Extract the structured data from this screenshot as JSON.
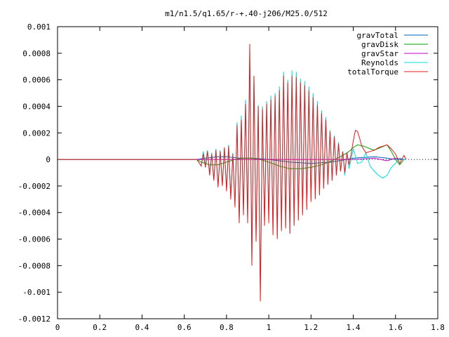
{
  "chart_data": {
    "type": "line",
    "title": "m1/n1.5/q1.65/r-+.40-j206/M25.0/512",
    "xlabel": "",
    "ylabel": "",
    "xlim": [
      0,
      1.8
    ],
    "ylim": [
      -0.0012,
      0.001
    ],
    "x_ticks": [
      "0",
      "0.2",
      "0.4",
      "0.6",
      "0.8",
      "1",
      "1.2",
      "1.4",
      "1.6",
      "1.8"
    ],
    "y_ticks": [
      "0.001",
      "0.0008",
      "0.0006",
      "0.0004",
      "0.0002",
      "0",
      "-0.0002",
      "-0.0004",
      "-0.0006",
      "-0.0008",
      "-0.001",
      "-0.0012"
    ],
    "grid": false,
    "legend_position": "top-right",
    "series": [
      {
        "name": "gravTotal",
        "color": "#0060ad",
        "points": [
          [
            0,
            0
          ],
          [
            0.66,
            0
          ],
          [
            0.7,
            1e-05
          ],
          [
            0.76,
            2e-05
          ],
          [
            0.8,
            2e-05
          ],
          [
            0.86,
            1e-05
          ],
          [
            0.92,
            1e-05
          ],
          [
            1.0,
            0
          ],
          [
            1.05,
            -1e-05
          ],
          [
            1.1,
            -2e-05
          ],
          [
            1.2,
            -3e-05
          ],
          [
            1.3,
            -2e-05
          ],
          [
            1.4,
            1e-05
          ],
          [
            1.5,
            2e-05
          ],
          [
            1.56,
            1e-05
          ],
          [
            1.6,
            0
          ],
          [
            1.64,
            0
          ]
        ]
      },
      {
        "name": "gravDisk",
        "color": "#009e00",
        "points": [
          [
            0,
            0
          ],
          [
            0.66,
            0
          ],
          [
            0.68,
            -2e-05
          ],
          [
            0.72,
            -4e-05
          ],
          [
            0.76,
            -4e-05
          ],
          [
            0.8,
            -2e-05
          ],
          [
            0.84,
            0
          ],
          [
            0.88,
            1e-05
          ],
          [
            0.92,
            1e-05
          ],
          [
            0.96,
            0
          ],
          [
            1.0,
            -2e-05
          ],
          [
            1.05,
            -5e-05
          ],
          [
            1.1,
            -7e-05
          ],
          [
            1.15,
            -7e-05
          ],
          [
            1.2,
            -6e-05
          ],
          [
            1.25,
            -4e-05
          ],
          [
            1.3,
            -1e-05
          ],
          [
            1.35,
            3e-05
          ],
          [
            1.38,
            6e-05
          ],
          [
            1.4,
            9e-05
          ],
          [
            1.42,
            0.00011
          ],
          [
            1.45,
            0.0001
          ],
          [
            1.48,
            8e-05
          ],
          [
            1.5,
            7e-05
          ],
          [
            1.53,
            9e-05
          ],
          [
            1.56,
            0.00011
          ],
          [
            1.58,
            6e-05
          ],
          [
            1.6,
            0
          ],
          [
            1.62,
            -4e-05
          ],
          [
            1.64,
            0
          ],
          [
            1.65,
            0
          ]
        ]
      },
      {
        "name": "gravStar",
        "color": "#c000c0",
        "points": [
          [
            0,
            0
          ],
          [
            0.66,
            0
          ],
          [
            0.8,
            0
          ],
          [
            1.0,
            0
          ],
          [
            1.2,
            0
          ],
          [
            1.4,
            0
          ],
          [
            1.5,
            1e-05
          ],
          [
            1.56,
            -1e-05
          ],
          [
            1.6,
            1e-05
          ],
          [
            1.64,
            0
          ]
        ]
      },
      {
        "name": "Reynolds",
        "color": "#00dcdc",
        "points": [
          [
            0,
            0
          ],
          [
            0.66,
            0
          ],
          [
            0.68,
            -5e-05
          ],
          [
            0.69,
            6e-05
          ],
          [
            0.7,
            -4e-05
          ],
          [
            0.71,
            7e-05
          ],
          [
            0.72,
            -0.0001
          ],
          [
            0.73,
            5e-05
          ],
          [
            0.74,
            -0.00015
          ],
          [
            0.75,
            8e-05
          ],
          [
            0.76,
            -0.0002
          ],
          [
            0.77,
            7e-05
          ],
          [
            0.78,
            -0.00018
          ],
          [
            0.79,
            9e-05
          ],
          [
            0.8,
            -0.00022
          ],
          [
            0.81,
            0.00011
          ],
          [
            0.82,
            -0.00028
          ],
          [
            0.83,
            5e-05
          ],
          [
            0.84,
            -0.00034
          ],
          [
            0.85,
            0.00028
          ],
          [
            0.86,
            -0.00045
          ],
          [
            0.87,
            0.00033
          ],
          [
            0.88,
            -0.0004
          ],
          [
            0.89,
            0.00045
          ],
          [
            0.9,
            -0.00044
          ],
          [
            0.91,
            0.00074
          ],
          [
            0.92,
            -0.00078
          ],
          [
            0.93,
            0.00063
          ],
          [
            0.94,
            -0.0006
          ],
          [
            0.95,
            0.00041
          ],
          [
            0.96,
            -0.001
          ],
          [
            0.97,
            0.0004
          ],
          [
            0.98,
            -0.00048
          ],
          [
            0.99,
            0.00044
          ],
          [
            1.0,
            -0.00045
          ],
          [
            1.01,
            0.00048
          ],
          [
            1.02,
            -0.00055
          ],
          [
            1.03,
            0.0005
          ],
          [
            1.04,
            -0.00058
          ],
          [
            1.05,
            0.00055
          ],
          [
            1.06,
            -0.00052
          ],
          [
            1.07,
            0.00066
          ],
          [
            1.08,
            -0.0005
          ],
          [
            1.09,
            0.0006
          ],
          [
            1.1,
            -0.00055
          ],
          [
            1.11,
            0.00067
          ],
          [
            1.12,
            -0.00048
          ],
          [
            1.13,
            0.00066
          ],
          [
            1.14,
            -0.00044
          ],
          [
            1.15,
            0.00061
          ],
          [
            1.16,
            -0.0004
          ],
          [
            1.17,
            0.00059
          ],
          [
            1.18,
            -0.00036
          ],
          [
            1.19,
            0.00055
          ],
          [
            1.2,
            -0.0003
          ],
          [
            1.21,
            0.0005
          ],
          [
            1.22,
            -0.00028
          ],
          [
            1.23,
            0.00044
          ],
          [
            1.24,
            -0.00025
          ],
          [
            1.25,
            0.00037
          ],
          [
            1.26,
            -0.0002
          ],
          [
            1.27,
            0.00032
          ],
          [
            1.28,
            -0.00018
          ],
          [
            1.29,
            0.00022
          ],
          [
            1.3,
            -0.00015
          ],
          [
            1.31,
            0.00018
          ],
          [
            1.32,
            -0.00012
          ],
          [
            1.33,
            0.00013
          ],
          [
            1.34,
            -9e-05
          ],
          [
            1.35,
            6e-05
          ],
          [
            1.36,
            -0.00012
          ],
          [
            1.37,
            5e-05
          ],
          [
            1.38,
            -7e-05
          ],
          [
            1.4,
            8e-05
          ],
          [
            1.42,
            -3e-05
          ],
          [
            1.44,
            -2e-05
          ],
          [
            1.46,
            5e-05
          ],
          [
            1.48,
            -5e-05
          ],
          [
            1.5,
            -9e-05
          ],
          [
            1.52,
            -0.00012
          ],
          [
            1.54,
            -0.00014
          ],
          [
            1.56,
            -0.00012
          ],
          [
            1.58,
            -6e-05
          ],
          [
            1.6,
            -3e-05
          ],
          [
            1.62,
            1e-05
          ],
          [
            1.64,
            0
          ],
          [
            1.65,
            0
          ]
        ]
      },
      {
        "name": "totalTorque",
        "color": "#e41a1c",
        "points": [
          [
            0,
            0
          ],
          [
            0.66,
            0
          ],
          [
            0.68,
            -5e-05
          ],
          [
            0.69,
            4e-05
          ],
          [
            0.7,
            -6e-05
          ],
          [
            0.71,
            6e-05
          ],
          [
            0.72,
            -0.00012
          ],
          [
            0.73,
            4e-05
          ],
          [
            0.74,
            -0.00016
          ],
          [
            0.75,
            7e-05
          ],
          [
            0.76,
            -0.00021
          ],
          [
            0.77,
            6e-05
          ],
          [
            0.78,
            -0.0002
          ],
          [
            0.79,
            9e-05
          ],
          [
            0.8,
            -0.00024
          ],
          [
            0.81,
            0.0001
          ],
          [
            0.82,
            -0.0003
          ],
          [
            0.83,
            4e-05
          ],
          [
            0.84,
            -0.00036
          ],
          [
            0.85,
            0.00026
          ],
          [
            0.86,
            -0.00048
          ],
          [
            0.87,
            0.0003
          ],
          [
            0.88,
            -0.00042
          ],
          [
            0.89,
            0.00042
          ],
          [
            0.9,
            -0.00048
          ],
          [
            0.91,
            0.00087
          ],
          [
            0.92,
            -0.0008
          ],
          [
            0.93,
            0.00063
          ],
          [
            0.94,
            -0.00062
          ],
          [
            0.95,
            0.0004
          ],
          [
            0.96,
            -0.00107
          ],
          [
            0.97,
            0.00038
          ],
          [
            0.98,
            -0.0005
          ],
          [
            0.99,
            0.00042
          ],
          [
            1.0,
            -0.00048
          ],
          [
            1.01,
            0.00045
          ],
          [
            1.02,
            -0.00057
          ],
          [
            1.03,
            0.00048
          ],
          [
            1.04,
            -0.0006
          ],
          [
            1.05,
            0.00052
          ],
          [
            1.06,
            -0.00054
          ],
          [
            1.07,
            0.00063
          ],
          [
            1.08,
            -0.00052
          ],
          [
            1.09,
            0.00058
          ],
          [
            1.1,
            -0.00056
          ],
          [
            1.11,
            0.00063
          ],
          [
            1.12,
            -0.0005
          ],
          [
            1.13,
            0.00062
          ],
          [
            1.14,
            -0.00046
          ],
          [
            1.15,
            0.00058
          ],
          [
            1.16,
            -0.00042
          ],
          [
            1.17,
            0.00056
          ],
          [
            1.18,
            -0.00038
          ],
          [
            1.19,
            0.00052
          ],
          [
            1.2,
            -0.00032
          ],
          [
            1.21,
            0.00047
          ],
          [
            1.22,
            -0.0003
          ],
          [
            1.23,
            0.00041
          ],
          [
            1.24,
            -0.00027
          ],
          [
            1.25,
            0.00035
          ],
          [
            1.26,
            -0.00022
          ],
          [
            1.27,
            0.0003
          ],
          [
            1.28,
            -0.00019
          ],
          [
            1.29,
            0.00021
          ],
          [
            1.3,
            -0.00016
          ],
          [
            1.31,
            0.00017
          ],
          [
            1.32,
            -0.00012
          ],
          [
            1.33,
            0.00012
          ],
          [
            1.34,
            -9e-05
          ],
          [
            1.35,
            6e-05
          ],
          [
            1.36,
            -0.0001
          ],
          [
            1.37,
            5e-05
          ],
          [
            1.38,
            -4e-05
          ],
          [
            1.39,
            4e-05
          ],
          [
            1.4,
            0.00014
          ],
          [
            1.41,
            0.00022
          ],
          [
            1.42,
            0.00021
          ],
          [
            1.43,
            0.00016
          ],
          [
            1.44,
            0.0001
          ],
          [
            1.46,
            5e-05
          ],
          [
            1.48,
            6e-05
          ],
          [
            1.5,
            7e-05
          ],
          [
            1.52,
            9e-05
          ],
          [
            1.54,
            0.0001
          ],
          [
            1.56,
            0.00011
          ],
          [
            1.58,
            8e-05
          ],
          [
            1.6,
            4e-05
          ],
          [
            1.62,
            -3e-05
          ],
          [
            1.63,
            0
          ],
          [
            1.64,
            3e-05
          ],
          [
            1.65,
            0
          ]
        ]
      }
    ]
  }
}
